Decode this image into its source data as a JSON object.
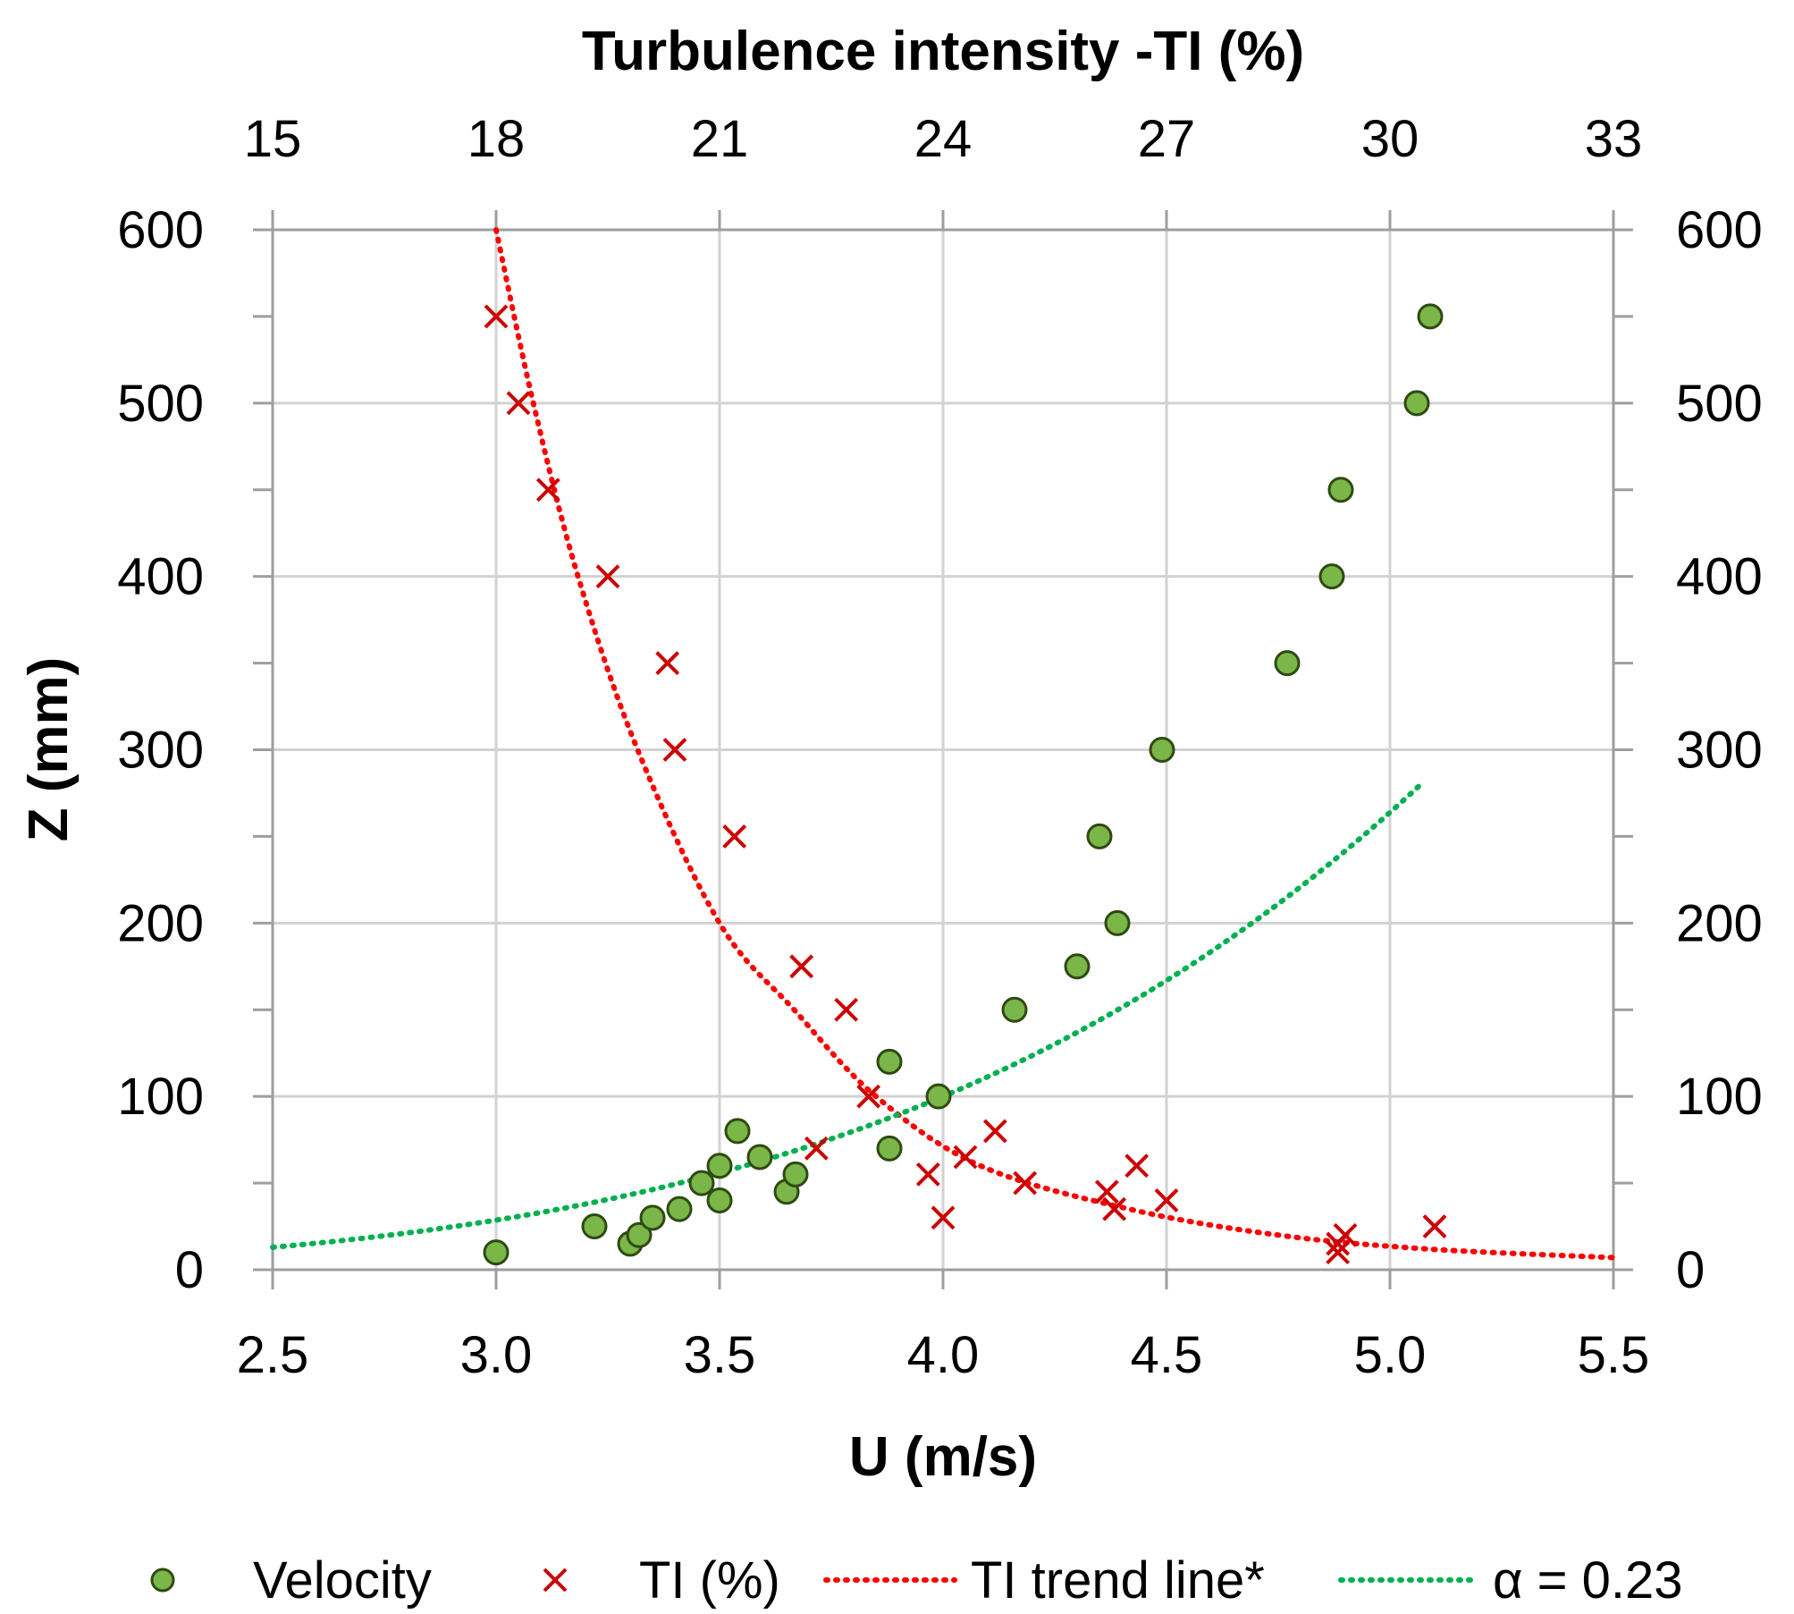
{
  "chart_data": {
    "type": "scatter",
    "top_axis": {
      "label": "Turbulence intensity -TI (%)",
      "range": [
        15,
        33
      ],
      "ticks": [
        "15",
        "18",
        "21",
        "24",
        "27",
        "30",
        "33"
      ]
    },
    "bottom_axis": {
      "label": "U (m/s)",
      "range": [
        2.5,
        5.5
      ],
      "ticks": [
        "2.5",
        "3.0",
        "3.5",
        "4.0",
        "4.5",
        "5.0",
        "5.5"
      ]
    },
    "left_axis": {
      "label": "Z (mm)",
      "range": [
        0,
        600
      ],
      "ticks": [
        "0",
        "100",
        "200",
        "300",
        "400",
        "500",
        "600"
      ]
    },
    "right_axis": {
      "range": [
        0,
        600
      ],
      "ticks": [
        "0",
        "100",
        "200",
        "300",
        "400",
        "500",
        "600"
      ]
    },
    "grid": true,
    "legend": {
      "position": "bottom",
      "items": [
        "Velocity",
        "TI (%)",
        "TI trend line*",
        "α = 0.23"
      ]
    },
    "series": [
      {
        "name": "Velocity",
        "axis": "bottom",
        "marker": "circle",
        "color": "#7ab648",
        "edge_color": "#2e4a12",
        "points": [
          [
            3.0,
            10
          ],
          [
            3.22,
            25
          ],
          [
            3.3,
            15
          ],
          [
            3.32,
            20
          ],
          [
            3.35,
            30
          ],
          [
            3.41,
            35
          ],
          [
            3.46,
            50
          ],
          [
            3.5,
            40
          ],
          [
            3.5,
            60
          ],
          [
            3.54,
            80
          ],
          [
            3.59,
            65
          ],
          [
            3.65,
            45
          ],
          [
            3.67,
            55
          ],
          [
            3.88,
            70
          ],
          [
            3.88,
            120
          ],
          [
            3.99,
            100
          ],
          [
            4.16,
            150
          ],
          [
            4.3,
            175
          ],
          [
            4.35,
            250
          ],
          [
            4.39,
            200
          ],
          [
            4.49,
            300
          ],
          [
            4.77,
            350
          ],
          [
            4.87,
            400
          ],
          [
            4.89,
            450
          ],
          [
            5.06,
            500
          ],
          [
            5.09,
            550
          ]
        ]
      },
      {
        "name": "TI (%)",
        "axis": "top",
        "marker": "x",
        "color": "#cc0000",
        "points": [
          [
            18.0,
            550
          ],
          [
            18.3,
            500
          ],
          [
            18.7,
            450
          ],
          [
            19.5,
            400
          ],
          [
            20.3,
            350
          ],
          [
            20.4,
            300
          ],
          [
            21.2,
            250
          ],
          [
            22.1,
            175
          ],
          [
            22.7,
            150
          ],
          [
            22.3,
            70
          ],
          [
            23.0,
            100
          ],
          [
            23.8,
            55
          ],
          [
            24.0,
            30
          ],
          [
            24.3,
            65
          ],
          [
            24.7,
            80
          ],
          [
            25.1,
            50
          ],
          [
            26.2,
            45
          ],
          [
            26.3,
            35
          ],
          [
            26.6,
            60
          ],
          [
            27.0,
            40
          ],
          [
            29.3,
            10
          ],
          [
            29.3,
            15
          ],
          [
            29.4,
            20
          ],
          [
            30.6,
            25
          ]
        ]
      },
      {
        "name": "TI trend line*",
        "axis": "top",
        "style": "dotted",
        "color": "#ff0000",
        "points": [
          [
            18.0,
            600
          ],
          [
            18.5,
            500
          ],
          [
            19.1,
            400
          ],
          [
            19.9,
            300
          ],
          [
            21.0,
            200
          ],
          [
            22.0,
            150
          ],
          [
            23.1,
            100
          ],
          [
            24.5,
            60
          ],
          [
            26.5,
            35
          ],
          [
            28.5,
            20
          ],
          [
            30.5,
            12
          ],
          [
            33.0,
            7
          ]
        ]
      },
      {
        "name": "α = 0.23",
        "axis": "bottom",
        "style": "dotted",
        "color": "#00b050",
        "reference_u": 4.0,
        "reference_z": 100,
        "alpha": 0.23,
        "u_range": [
          2.5,
          5.07
        ]
      }
    ]
  }
}
